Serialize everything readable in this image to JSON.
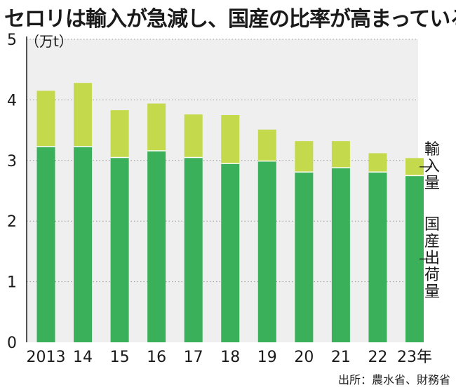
{
  "title": "セロリは輸入が急減し、国産の比率が高まっている",
  "source": "出所：農水省、財務省",
  "colors": {
    "domestic": "#3bb05b",
    "import": "#c4d94b",
    "plot_bg": "#efefef",
    "grid": "#9a9a9a"
  },
  "chart_data": {
    "type": "bar",
    "stacked": true,
    "categories": [
      "2013",
      "14",
      "15",
      "16",
      "17",
      "18",
      "19",
      "20",
      "21",
      "22",
      "23年"
    ],
    "series": [
      {
        "name": "国産出荷量",
        "values": [
          3.23,
          3.23,
          3.05,
          3.16,
          3.05,
          2.95,
          2.99,
          2.81,
          2.88,
          2.81,
          2.75
        ]
      },
      {
        "name": "輸入量",
        "values": [
          0.92,
          1.05,
          0.78,
          0.78,
          0.71,
          0.8,
          0.52,
          0.51,
          0.44,
          0.31,
          0.29
        ]
      }
    ],
    "ylabel": "（万t）",
    "ylim": [
      0,
      5
    ],
    "yticks": [
      0,
      1,
      2,
      3,
      4,
      5
    ],
    "grid": true,
    "legend": "right, direct labels"
  }
}
